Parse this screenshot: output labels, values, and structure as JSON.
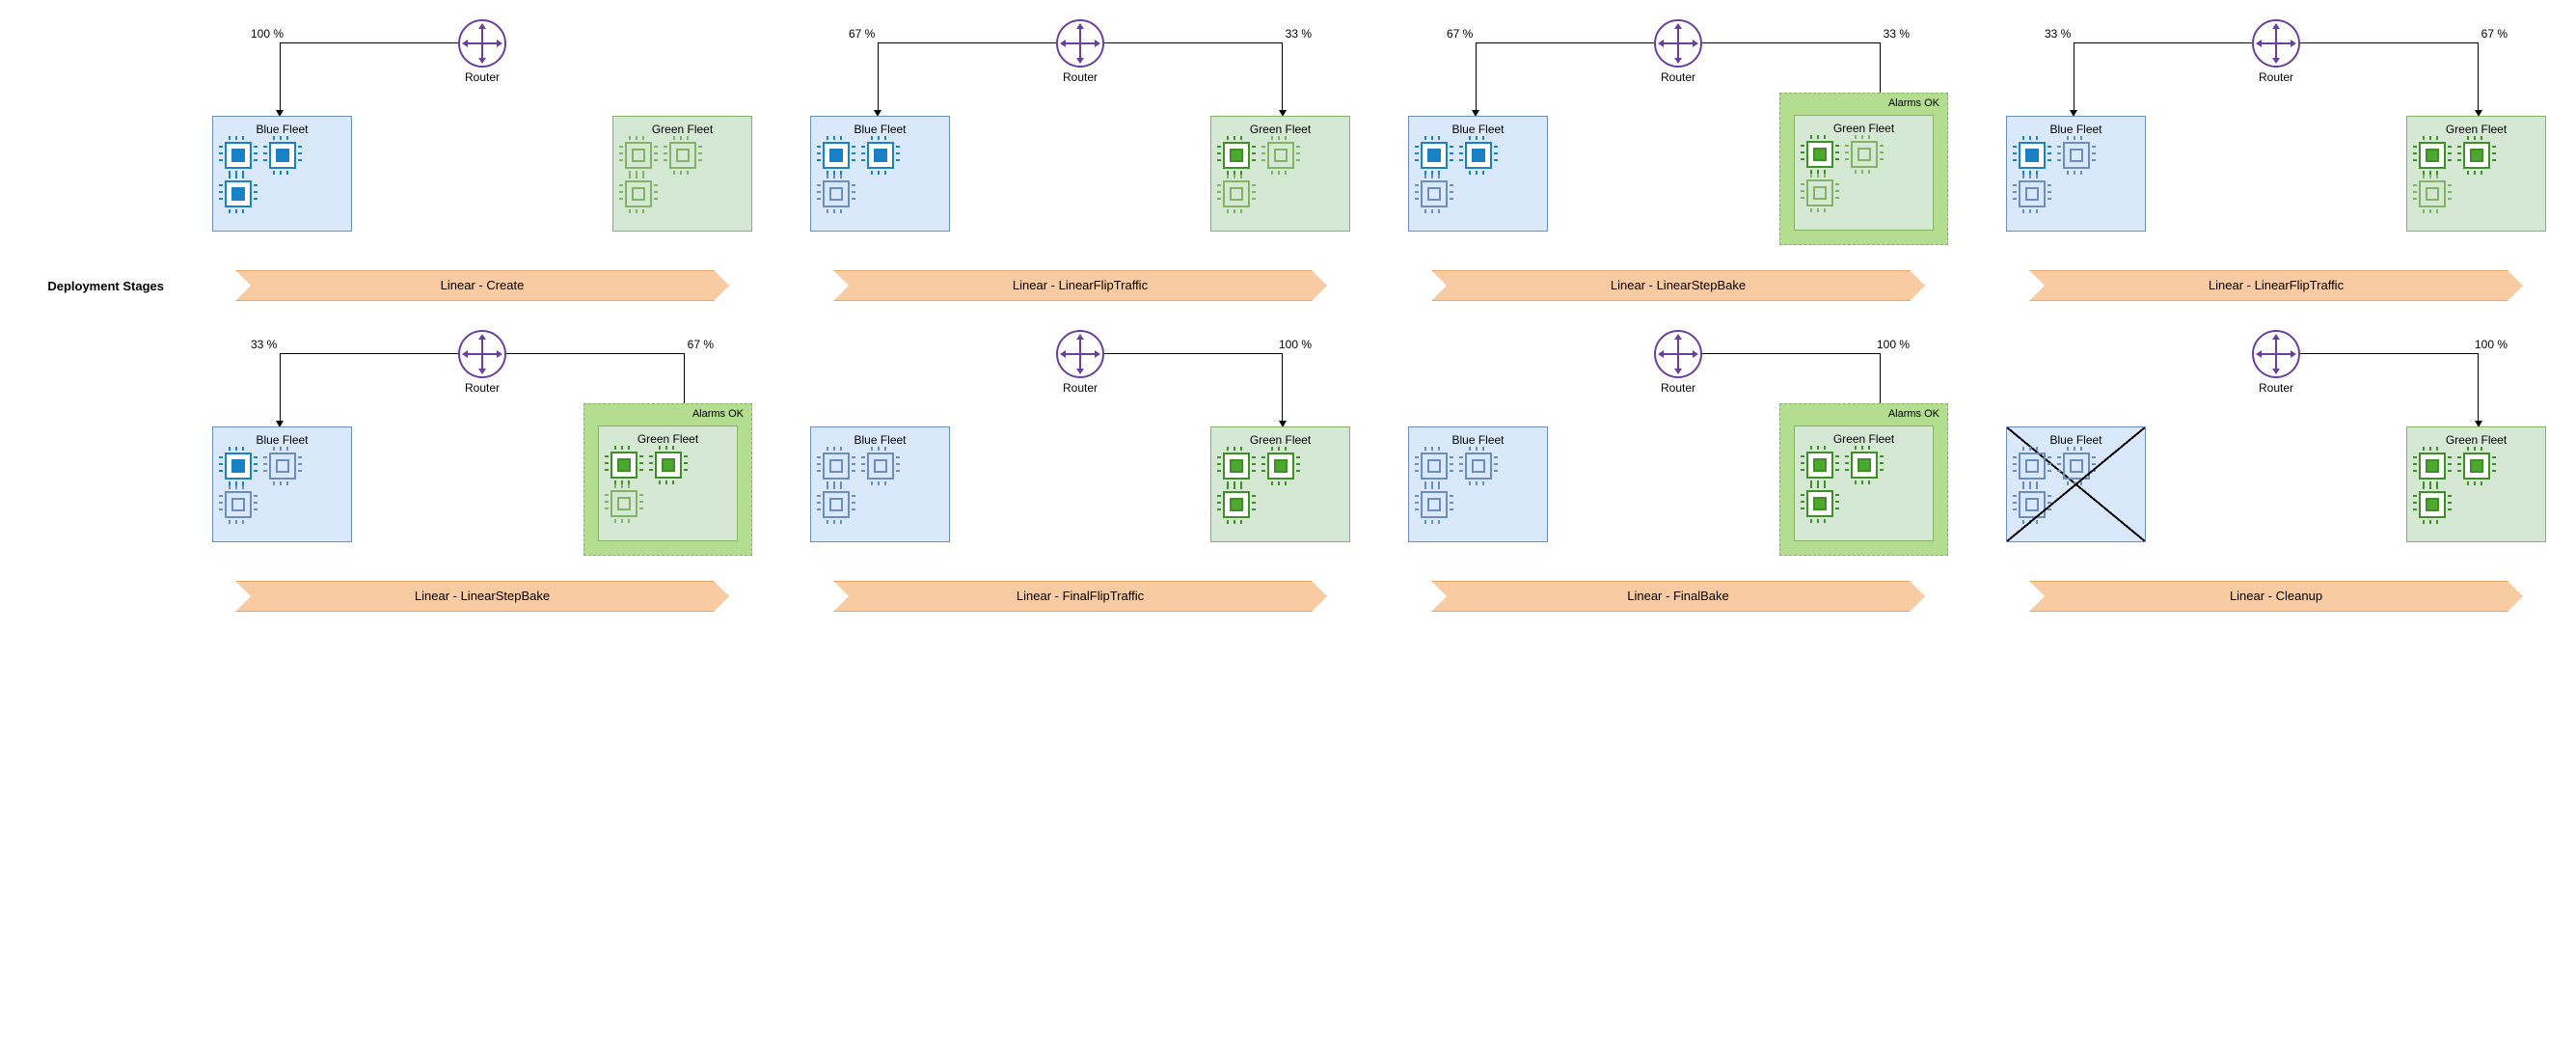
{
  "labels": {
    "deployment_stages": "Deployment Stages",
    "router": "Router",
    "blue_fleet": "Blue Fleet",
    "green_fleet": "Green Fleet",
    "alarms_ok": "Alarms OK"
  },
  "colors": {
    "router_stroke": "#6b3fa0",
    "blue_fleet_bg": "#dae8fc",
    "blue_fleet_border": "#6c8ebf",
    "green_fleet_bg": "#d5e8d4",
    "green_fleet_border": "#82b366",
    "alarm_bg": "#b4dd8f",
    "stage_bg": "#f8cba2",
    "stage_border": "#e8a764",
    "chip_blue_filled": "#1a81c4",
    "chip_green_filled": "#4ea72e"
  },
  "panels": [
    {
      "id": "p1",
      "stage": "Linear - Create",
      "left_pct": "100 %",
      "right_pct": null,
      "blue_chips": [
        "filled",
        "filled",
        "filled"
      ],
      "green_chips": [
        "outline",
        "outline",
        "outline"
      ],
      "alarm_wrap": false,
      "blue_crossed": false,
      "arrow_left": true,
      "arrow_right": false
    },
    {
      "id": "p2",
      "stage": "Linear - LinearFlipTraffic",
      "left_pct": "67 %",
      "right_pct": "33 %",
      "blue_chips": [
        "filled",
        "filled",
        "outline"
      ],
      "green_chips": [
        "filled",
        "outline",
        "outline"
      ],
      "alarm_wrap": false,
      "blue_crossed": false,
      "arrow_left": true,
      "arrow_right": true
    },
    {
      "id": "p3",
      "stage": "Linear - LinearStepBake",
      "left_pct": "67 %",
      "right_pct": "33 %",
      "blue_chips": [
        "filled",
        "filled",
        "outline"
      ],
      "green_chips": [
        "filled",
        "outline",
        "outline"
      ],
      "alarm_wrap": true,
      "blue_crossed": false,
      "arrow_left": true,
      "arrow_right": true
    },
    {
      "id": "p4",
      "stage": "Linear - LinearFlipTraffic",
      "left_pct": "33 %",
      "right_pct": "67 %",
      "blue_chips": [
        "filled",
        "outline",
        "outline"
      ],
      "green_chips": [
        "filled",
        "filled",
        "outline"
      ],
      "alarm_wrap": false,
      "blue_crossed": false,
      "arrow_left": true,
      "arrow_right": true
    },
    {
      "id": "p5",
      "stage": "Linear - LinearStepBake",
      "left_pct": "33 %",
      "right_pct": "67 %",
      "blue_chips": [
        "filled",
        "outline",
        "outline"
      ],
      "green_chips": [
        "filled",
        "filled",
        "outline"
      ],
      "alarm_wrap": true,
      "blue_crossed": false,
      "arrow_left": true,
      "arrow_right": true
    },
    {
      "id": "p6",
      "stage": "Linear - FinalFlipTraffic",
      "left_pct": null,
      "right_pct": "100 %",
      "blue_chips": [
        "outline",
        "outline",
        "outline"
      ],
      "green_chips": [
        "filled",
        "filled",
        "filled"
      ],
      "alarm_wrap": false,
      "blue_crossed": false,
      "arrow_left": false,
      "arrow_right": true
    },
    {
      "id": "p7",
      "stage": "Linear - FinalBake",
      "left_pct": null,
      "right_pct": "100 %",
      "blue_chips": [
        "outline",
        "outline",
        "outline"
      ],
      "green_chips": [
        "filled",
        "filled",
        "filled"
      ],
      "alarm_wrap": true,
      "blue_crossed": false,
      "arrow_left": false,
      "arrow_right": true
    },
    {
      "id": "p8",
      "stage": "Linear - Cleanup",
      "left_pct": null,
      "right_pct": "100 %",
      "blue_chips": [
        "outline",
        "outline",
        "outline"
      ],
      "green_chips": [
        "filled",
        "filled",
        "filled"
      ],
      "alarm_wrap": false,
      "blue_crossed": true,
      "arrow_left": false,
      "arrow_right": true
    }
  ]
}
